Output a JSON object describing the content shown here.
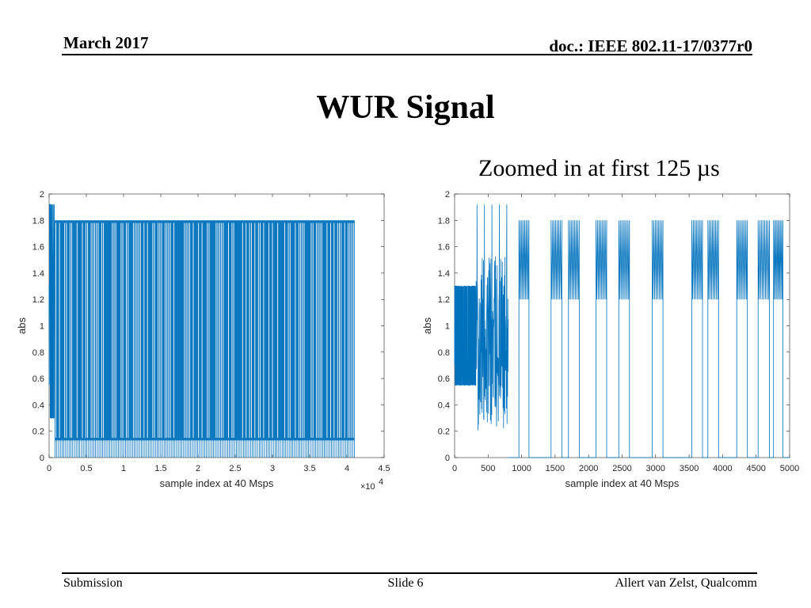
{
  "header": {
    "date": "March 2017",
    "doc": "doc.: IEEE 802.11-17/0377r0"
  },
  "title": "WUR Signal",
  "subtitle": "Zoomed in at first 125 µs",
  "footer": {
    "left": "Submission",
    "center": "Slide 6",
    "right": "Allert van Zelst, Qualcomm"
  },
  "colors": {
    "series": "#0072BD",
    "axis": "#262626"
  },
  "chart_data": [
    {
      "type": "line",
      "xlabel": "sample index at 40 Msps",
      "ylabel": "abs",
      "x_exponent_label": "×10",
      "x_exponent": "4",
      "xlim": [
        0,
        4.5
      ],
      "ylim": [
        0,
        2
      ],
      "xticks": [
        "0",
        "0.5",
        "1",
        "1.5",
        "2",
        "2.5",
        "3",
        "3.5",
        "4",
        "4.5"
      ],
      "yticks": [
        "0",
        "0.2",
        "0.4",
        "0.6",
        "0.8",
        "1",
        "1.2",
        "1.4",
        "1.6",
        "1.8",
        "2"
      ],
      "grid": false,
      "preamble_x_range": [
        0,
        0.08
      ],
      "preamble_levels": [
        0.3,
        0.55,
        0.71,
        1.3,
        1.53,
        1.92
      ],
      "envelope_x_range": [
        0.08,
        4.1
      ],
      "envelope_high": 1.8,
      "envelope_low": 0.13,
      "envelope_min": 0
    },
    {
      "type": "line",
      "xlabel": "sample index at 40 Msps",
      "ylabel": "abs",
      "xlim": [
        0,
        5000
      ],
      "ylim": [
        0,
        2
      ],
      "xticks": [
        "0",
        "500",
        "1000",
        "1500",
        "2000",
        "2500",
        "3000",
        "3500",
        "4000",
        "4500",
        "5000"
      ],
      "yticks": [
        "0",
        "0.2",
        "0.4",
        "0.6",
        "0.8",
        "1",
        "1.2",
        "1.4",
        "1.6",
        "1.8",
        "2"
      ],
      "grid": false,
      "preamble_x_range": [
        0,
        320
      ],
      "preamble_levels": [
        0.55,
        0.71,
        1.3
      ],
      "transition_x_range": [
        320,
        800
      ],
      "transition_peak": 1.92,
      "on_bursts": [
        [
          960,
          1110
        ],
        [
          1440,
          1600
        ],
        [
          1700,
          1860
        ],
        [
          2110,
          2270
        ],
        [
          2450,
          2610
        ],
        [
          2950,
          3110
        ],
        [
          3540,
          3700
        ],
        [
          3780,
          3940
        ],
        [
          4210,
          4370
        ],
        [
          4530,
          4700
        ],
        [
          4760,
          4900
        ]
      ],
      "on_high": 1.8,
      "on_low": 1.2,
      "off_level": 0
    }
  ]
}
